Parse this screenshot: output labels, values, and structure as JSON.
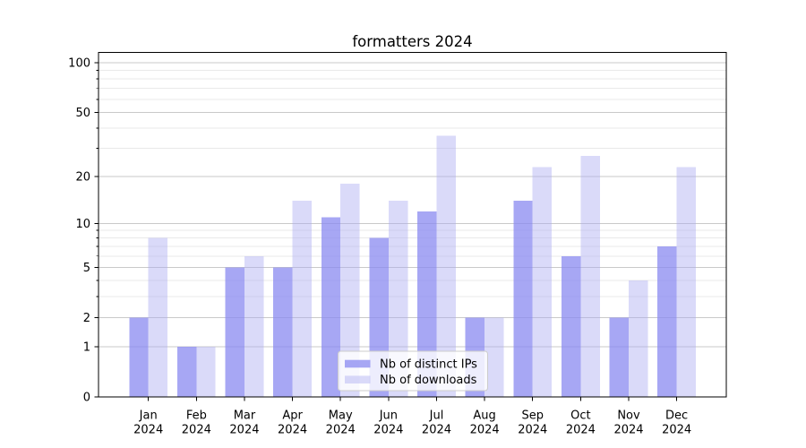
{
  "chart_data": {
    "type": "bar",
    "title": "formatters 2024",
    "categories": [
      "Jan",
      "Feb",
      "Mar",
      "Apr",
      "May",
      "Jun",
      "Jul",
      "Aug",
      "Sep",
      "Oct",
      "Nov",
      "Dec"
    ],
    "category_year_label": "2024",
    "series": [
      {
        "key": "distinct-ips",
        "name": "Nb of distinct IPs",
        "color": "rgba(138,138,240,0.75)",
        "values": [
          2,
          1,
          5,
          5,
          11,
          8,
          12,
          2,
          14,
          6,
          2,
          7
        ]
      },
      {
        "key": "downloads",
        "name": "Nb of downloads",
        "color": "rgba(173,173,242,0.45)",
        "values": [
          8,
          1,
          6,
          14,
          18,
          14,
          36,
          2,
          23,
          27,
          4,
          23
        ]
      }
    ],
    "yscale": "log1p",
    "ylim": [
      0,
      116
    ],
    "y_major_ticks": [
      0,
      1,
      2,
      5,
      10,
      20,
      50,
      100
    ],
    "y_minor_ticks": [
      3,
      4,
      6,
      7,
      8,
      9,
      30,
      40,
      60,
      70,
      80,
      90
    ],
    "grid": true,
    "legend_position": "inside lower center",
    "colors": {
      "grid_major": "#c9c9c9",
      "grid_minor": "#e9e9e9",
      "axis": "#000000",
      "background": "#ffffff",
      "legend_border": "#cccccc",
      "legend_background": "#ffffff"
    }
  }
}
